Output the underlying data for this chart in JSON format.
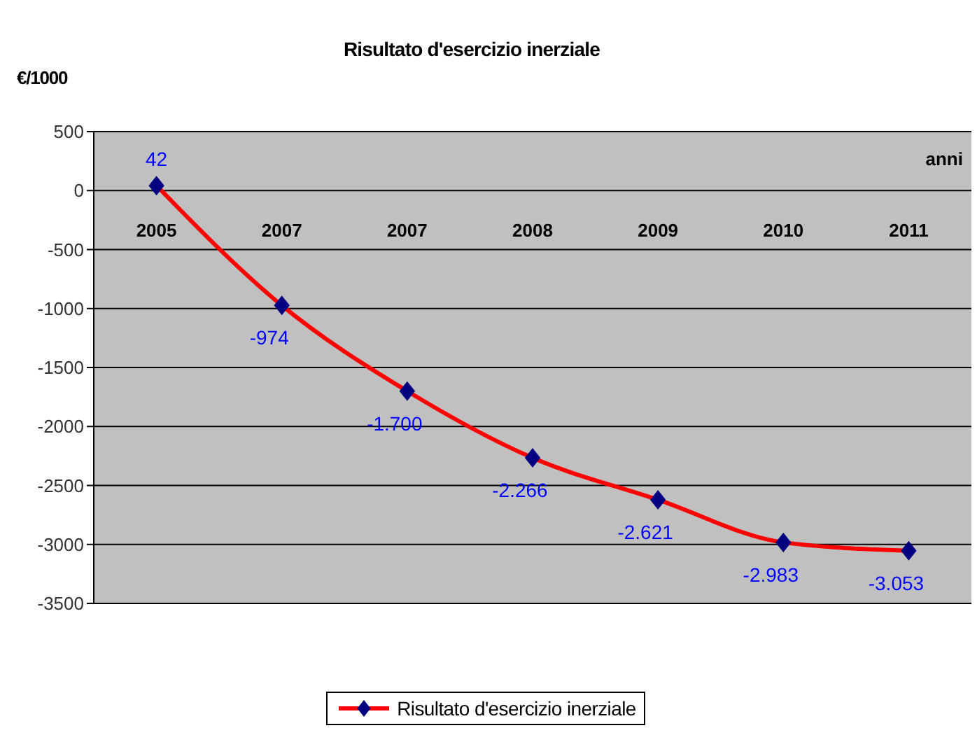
{
  "chart_data": {
    "type": "line",
    "title": "Risultato d'esercizio inerziale",
    "ylabel": "€/1000",
    "xlabel": "anni",
    "categories": [
      "2005",
      "2007",
      "2007",
      "2008",
      "2009",
      "2010",
      "2011"
    ],
    "series": [
      {
        "name": "Risultato d'esercizio inerziale",
        "color": "#ff0000",
        "values": [
          42,
          -974,
          -1700,
          -2266,
          -2621,
          -2983,
          -3053
        ],
        "value_labels": [
          "42",
          "-974",
          "-1.700",
          "-2.266",
          "-2.621",
          "-2.983",
          "-3.053"
        ]
      }
    ],
    "ylim": [
      -3500,
      500
    ],
    "yticks": [
      -3500,
      -3000,
      -2500,
      -2000,
      -1500,
      -1000,
      -500,
      0,
      500
    ],
    "grid": "y",
    "legend": "bottom",
    "marker": "diamond",
    "line_style": "solid"
  }
}
